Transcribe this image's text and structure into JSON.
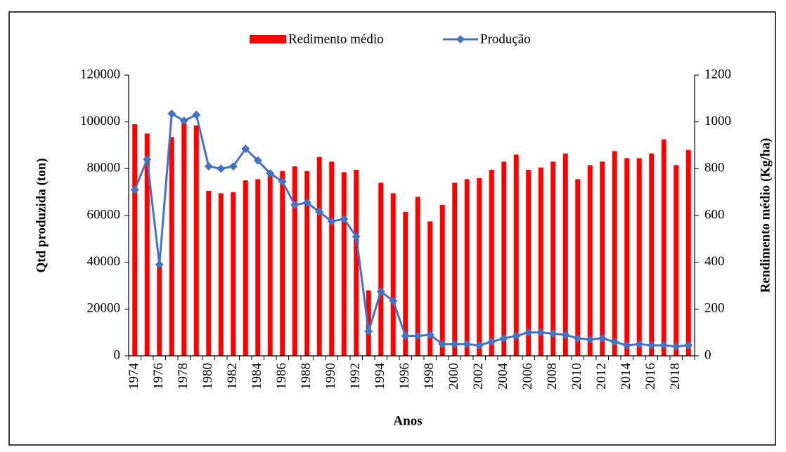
{
  "chart_data": {
    "type": "bar",
    "categories": [
      "1974",
      null,
      "1976",
      null,
      "1978",
      null,
      "1980",
      null,
      "1982",
      null,
      "1984",
      null,
      "1986",
      null,
      "1988",
      null,
      "1990",
      null,
      "1992",
      null,
      "1994",
      null,
      "1996",
      null,
      "1998",
      null,
      "2000",
      null,
      "2002",
      null,
      "2004",
      null,
      "2006",
      null,
      "2008",
      null,
      "2010",
      null,
      "2012",
      null,
      "2014",
      null,
      "2016",
      null,
      "2018",
      null
    ],
    "series": [
      {
        "name": "Redimento médio",
        "type": "bar",
        "color": "#ff0000",
        "axis": "y2",
        "values": [
          990,
          950,
          390,
          935,
          1000,
          985,
          705,
          695,
          700,
          750,
          755,
          790,
          790,
          810,
          790,
          850,
          830,
          785,
          795,
          280,
          740,
          695,
          615,
          680,
          575,
          645,
          740,
          755,
          760,
          795,
          830,
          860,
          795,
          805,
          830,
          865,
          755,
          815,
          830,
          875,
          845,
          845,
          865,
          925,
          815,
          880
        ]
      },
      {
        "name": "Produção",
        "type": "line",
        "color": "#4472c4",
        "axis": "y",
        "values": [
          71000,
          84000,
          39000,
          103500,
          100500,
          103000,
          81000,
          80000,
          81000,
          88500,
          83500,
          78000,
          74500,
          64500,
          65500,
          61500,
          57500,
          58500,
          51000,
          10500,
          27500,
          23500,
          8500,
          8500,
          9000,
          5000,
          5000,
          5000,
          4500,
          6000,
          7500,
          8500,
          10000,
          10000,
          9500,
          9000,
          7500,
          7000,
          7500,
          6000,
          4500,
          5000,
          4500,
          4500,
          4000,
          4500
        ]
      }
    ],
    "xlabel": "Anos",
    "ylabel": "Qtd produzida (ton)",
    "y2label": "Rendimento médio (Kg/ha)",
    "ylim": [
      0,
      120000
    ],
    "yticks": [
      0,
      20000,
      40000,
      60000,
      80000,
      100000,
      120000
    ],
    "y2lim": [
      0,
      1200
    ],
    "y2ticks": [
      0,
      200,
      400,
      600,
      800,
      1000,
      1200
    ],
    "legend": "top"
  }
}
